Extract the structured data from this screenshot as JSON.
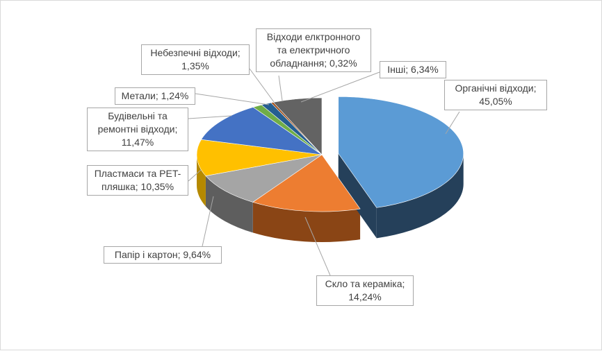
{
  "chart_data": {
    "type": "pie",
    "style": "3d-exploded-first-slice",
    "legend": "none",
    "slices": [
      {
        "label_lines": [
          "Органічні відходи;",
          "45,05%"
        ],
        "value": 45.05,
        "color": "#5b9bd5",
        "side": "#25405a"
      },
      {
        "label_lines": [
          "Скло та кераміка;",
          "14,24%"
        ],
        "value": 14.24,
        "color": "#ed7d31",
        "side": "#8a4515"
      },
      {
        "label_lines": [
          "Папір і картон; 9,64%"
        ],
        "value": 9.64,
        "color": "#a5a5a5",
        "side": "#5e5e5e"
      },
      {
        "label_lines": [
          "Пластмаси та PET-",
          "пляшка; 10,35%"
        ],
        "value": 10.35,
        "color": "#ffc000",
        "side": "#b58900"
      },
      {
        "label_lines": [
          "Будівельні та",
          "ремонтні відходи;",
          "11,47%"
        ],
        "value": 11.47,
        "color": "#4472c4",
        "side": "#253f6d"
      },
      {
        "label_lines": [
          "Метали; 1,24%"
        ],
        "value": 1.24,
        "color": "#70ad47",
        "side": "#3f6327"
      },
      {
        "label_lines": [
          "Небезпечні відходи;",
          "1,35%"
        ],
        "value": 1.35,
        "color": "#255e91",
        "side": "#143552"
      },
      {
        "label_lines": [
          "Відходи елктронного",
          "та електричного",
          "обладнання; 0,32%"
        ],
        "value": 0.32,
        "color": "#9e480e",
        "side": "#5c2a08"
      },
      {
        "label_lines": [
          "Інші; 6,34%"
        ],
        "value": 6.34,
        "color": "#636363",
        "side": "#3a3a3a"
      }
    ]
  }
}
